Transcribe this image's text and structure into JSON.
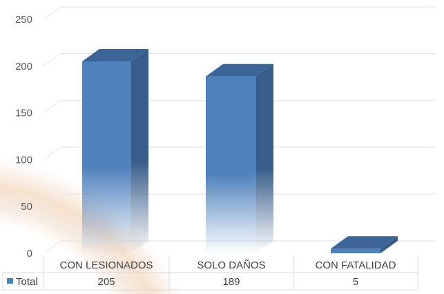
{
  "chart_data": {
    "type": "bar",
    "style": "3d-column",
    "title": "",
    "xlabel": "",
    "ylabel": "",
    "categories": [
      "CON LESIONADOS",
      "SOLO DAÑOS",
      "CON FATALIDAD"
    ],
    "series": [
      {
        "name": "Total",
        "values": [
          205,
          189,
          5
        ],
        "color": "#4f81bd"
      }
    ],
    "ylim": [
      0,
      250
    ],
    "yticks": [
      0,
      50,
      100,
      150,
      200,
      250
    ],
    "grid": true,
    "legend": "data-table-key",
    "data_table": {
      "header": [
        "CON LESIONADOS",
        "SOLO DAÑOS",
        "CON FATALIDAD"
      ],
      "rows": [
        {
          "label": "Total",
          "values": [
            "205",
            "189",
            "5"
          ]
        }
      ]
    }
  },
  "colors": {
    "bar_front": "#4f81bd",
    "bar_side": "#385d8a",
    "bar_top": "#3c6496",
    "grid": "#eaeaea",
    "table_border": "#d9d9d9"
  }
}
